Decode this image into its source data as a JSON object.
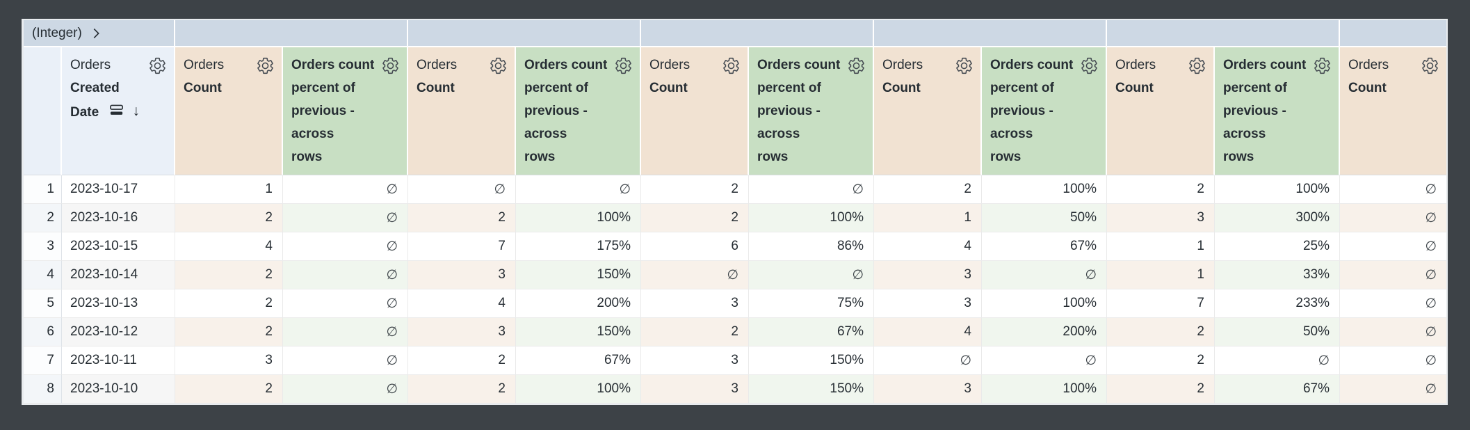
{
  "app": {
    "frame_color": "#3d4247"
  },
  "pivot": {
    "field_label": "(Integer)",
    "value_cells": [
      "",
      "",
      "",
      "",
      "",
      ""
    ]
  },
  "header": {
    "date": {
      "view": "Orders",
      "field": "Created Date",
      "field_line1": "Created",
      "field_line2": "Date",
      "sort": "descending"
    },
    "count": {
      "view": "Orders",
      "field": "Count"
    },
    "calc": {
      "label": "Orders count percent of previous - across rows",
      "lines": [
        "Orders count",
        "percent of",
        "previous -",
        "across",
        "rows"
      ]
    }
  },
  "icons": {
    "sort_desc_glyph": "↓"
  },
  "colors": {
    "pivot_header_bg": "#cdd8e4",
    "dimension_header_bg": "#eaf0f8",
    "measure_header_bg": "#f1e2d2",
    "calc_header_bg": "#c8dfc3",
    "even_row_measure_bg": "#f8f1ea",
    "even_row_calc_bg": "#f0f6ee",
    "text": "#262d33"
  },
  "table": {
    "null_symbol": "∅",
    "rows": [
      {
        "num": "1",
        "date": "2023-10-17",
        "values": [
          "1",
          "∅",
          "∅",
          "∅",
          "2",
          "∅",
          "2",
          "100%",
          "2",
          "100%",
          "∅"
        ]
      },
      {
        "num": "2",
        "date": "2023-10-16",
        "values": [
          "2",
          "∅",
          "2",
          "100%",
          "2",
          "100%",
          "1",
          "50%",
          "3",
          "300%",
          "∅"
        ]
      },
      {
        "num": "3",
        "date": "2023-10-15",
        "values": [
          "4",
          "∅",
          "7",
          "175%",
          "6",
          "86%",
          "4",
          "67%",
          "1",
          "25%",
          "∅"
        ]
      },
      {
        "num": "4",
        "date": "2023-10-14",
        "values": [
          "2",
          "∅",
          "3",
          "150%",
          "∅",
          "∅",
          "3",
          "∅",
          "1",
          "33%",
          "∅"
        ]
      },
      {
        "num": "5",
        "date": "2023-10-13",
        "values": [
          "2",
          "∅",
          "4",
          "200%",
          "3",
          "75%",
          "3",
          "100%",
          "7",
          "233%",
          "∅"
        ]
      },
      {
        "num": "6",
        "date": "2023-10-12",
        "values": [
          "2",
          "∅",
          "3",
          "150%",
          "2",
          "67%",
          "4",
          "200%",
          "2",
          "50%",
          "∅"
        ]
      },
      {
        "num": "7",
        "date": "2023-10-11",
        "values": [
          "3",
          "∅",
          "2",
          "67%",
          "3",
          "150%",
          "∅",
          "∅",
          "2",
          "∅",
          "∅"
        ]
      },
      {
        "num": "8",
        "date": "2023-10-10",
        "values": [
          "2",
          "∅",
          "2",
          "100%",
          "3",
          "150%",
          "3",
          "100%",
          "2",
          "67%",
          "∅"
        ]
      }
    ]
  }
}
